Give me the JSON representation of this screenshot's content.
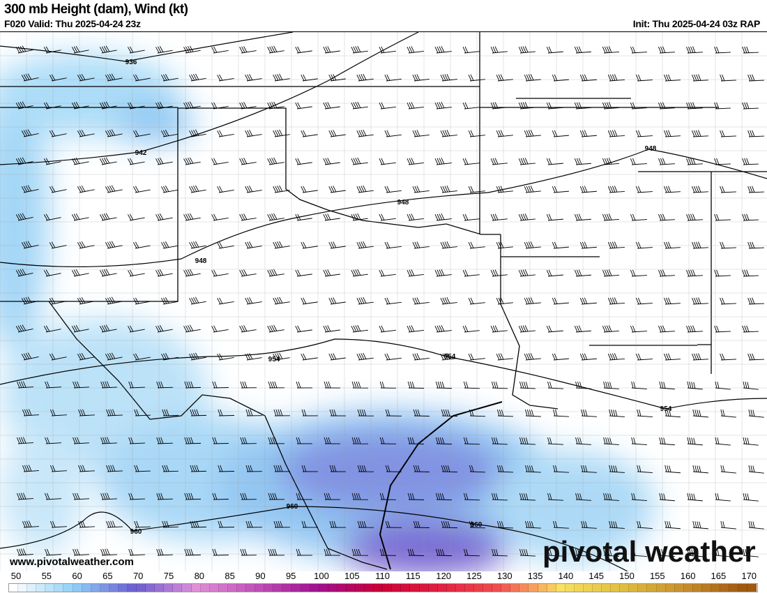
{
  "header": {
    "title": "300 mb Height (dam), Wind (kt)",
    "valid": "F020 Valid: Thu 2025-04-24 23z",
    "init": "Init: Thu 2025-04-24 03z RAP"
  },
  "map": {
    "contour_labels": [
      "936",
      "942",
      "948",
      "948",
      "948",
      "954",
      "954",
      "954",
      "960",
      "960",
      "960"
    ],
    "credit": "www.pivotalweather.com",
    "brand": "pivotal weather"
  },
  "colorbar": {
    "unit": "kt",
    "labels": [
      "50",
      "55",
      "60",
      "65",
      "70",
      "75",
      "80",
      "85",
      "90",
      "95",
      "100",
      "105",
      "110",
      "115",
      "120",
      "125",
      "130",
      "135",
      "140",
      "145",
      "150",
      "155",
      "160",
      "165",
      "170"
    ],
    "stops": [
      [
        50,
        "#ffffff"
      ],
      [
        60,
        "#8fd0f8"
      ],
      [
        70,
        "#6a5cd0"
      ],
      [
        80,
        "#e090d8"
      ],
      [
        90,
        "#c050b8"
      ],
      [
        100,
        "#a01090"
      ],
      [
        110,
        "#c80038"
      ],
      [
        120,
        "#e02040"
      ],
      [
        130,
        "#f05050"
      ],
      [
        136,
        "#f8a860"
      ],
      [
        140,
        "#f8e060"
      ],
      [
        150,
        "#e0c040"
      ],
      [
        160,
        "#c89030"
      ],
      [
        170,
        "#a05a10"
      ]
    ]
  }
}
